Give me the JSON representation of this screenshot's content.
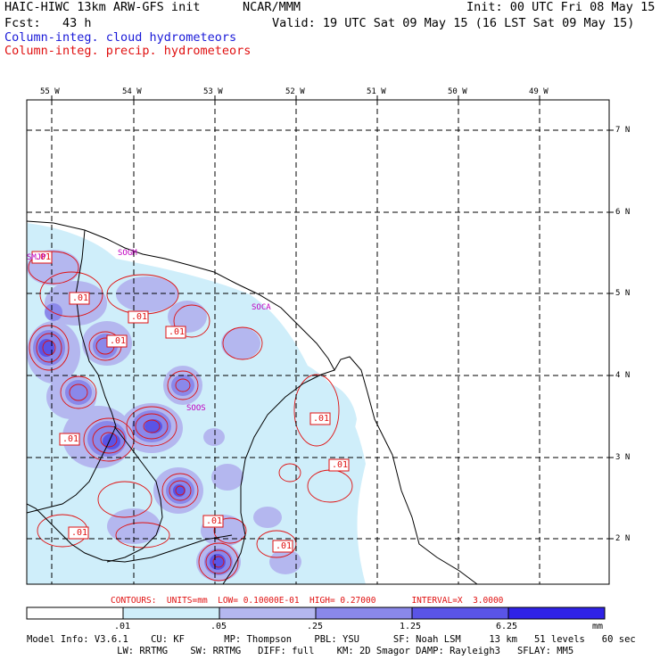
{
  "header": {
    "model": "HAIC-HIWC 13km ARW-GFS init",
    "center": "NCAR/MMM",
    "init": "Init: 00 UTC Fri 08 May 15",
    "fcst": "Fcst:   43 h",
    "valid": "Valid: 19 UTC Sat 09 May 15 (16 LST Sat 09 May 15)",
    "field1": "Column-integ. cloud hydrometeors",
    "field2": "Column-integ. precip. hydrometeors"
  },
  "map": {
    "lon_labels": [
      "55 W",
      "54 W",
      "53 W",
      "52 W",
      "51 W",
      "50 W",
      "49 W"
    ],
    "lat_labels": [
      "7 N",
      "6 N",
      "5 N",
      "4 N",
      "3 N",
      "2 N"
    ],
    "stations": [
      "SMJP",
      "SOCA",
      "SOOS",
      "SOGM"
    ],
    "contour_labels": [
      ".01",
      ".01",
      ".01",
      ".01",
      ".01",
      ".01",
      ".01",
      ".01",
      ".01",
      ".01",
      ".01"
    ]
  },
  "contours_info": "CONTOURS:  UNITS=mm  LOW= 0.10000E-01  HIGH= 0.27000       INTERVAL=X  3.0000",
  "colorbar": {
    "levels": [
      ".01",
      ".05",
      ".25",
      "1.25",
      "6.25"
    ],
    "units": "mm",
    "colors": [
      "#ffffff",
      "#cfeefa",
      "#b4b7ef",
      "#8a88ea",
      "#5a54e6",
      "#2f22e6"
    ]
  },
  "footer": {
    "line1": "Model Info: V3.6.1    CU: KF       MP: Thompson    PBL: YSU      SF: Noah LSM     13 km   51 levels   60 sec",
    "line2": "                LW: RRTMG    SW: RRTMG   DIFF: full    KM: 2D Smagor DAMP: Rayleigh3   SFLAY: MM5"
  }
}
